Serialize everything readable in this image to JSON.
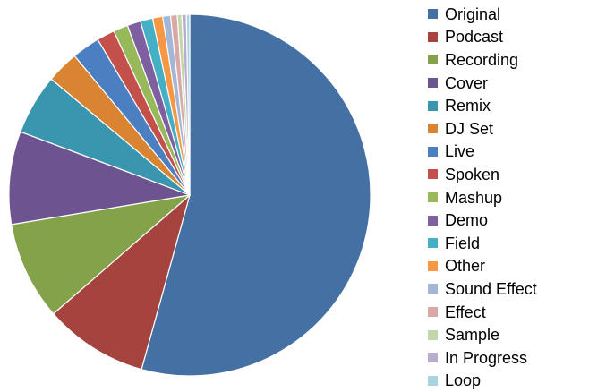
{
  "chart_data": {
    "type": "pie",
    "title": "",
    "categories": [
      "Original",
      "Podcast",
      "Recording",
      "Cover",
      "Remix",
      "DJ Set",
      "Live",
      "Spoken",
      "Mashup",
      "Demo",
      "Field",
      "Other",
      "Sound Effect",
      "Effect",
      "Sample",
      "In Progress",
      "Loop"
    ],
    "values": [
      54.3,
      9.3,
      8.8,
      8.3,
      5.4,
      2.9,
      2.5,
      1.6,
      1.3,
      1.2,
      1.1,
      0.9,
      0.7,
      0.6,
      0.4,
      0.4,
      0.3
    ],
    "value_unit": "percent",
    "start_angle": "12 o'clock",
    "direction": "clockwise",
    "legend": "right",
    "colors": [
      "#4470A4",
      "#A5443F",
      "#84A24A",
      "#6D5390",
      "#3A96AE",
      "#D88432",
      "#4A7FC2",
      "#C4504C",
      "#97B95A",
      "#7E5FA0",
      "#45AFC6",
      "#F59743",
      "#A4B6D6",
      "#D9A9A7",
      "#C3D6A7",
      "#B9ACCC",
      "#A9D3DE"
    ]
  }
}
